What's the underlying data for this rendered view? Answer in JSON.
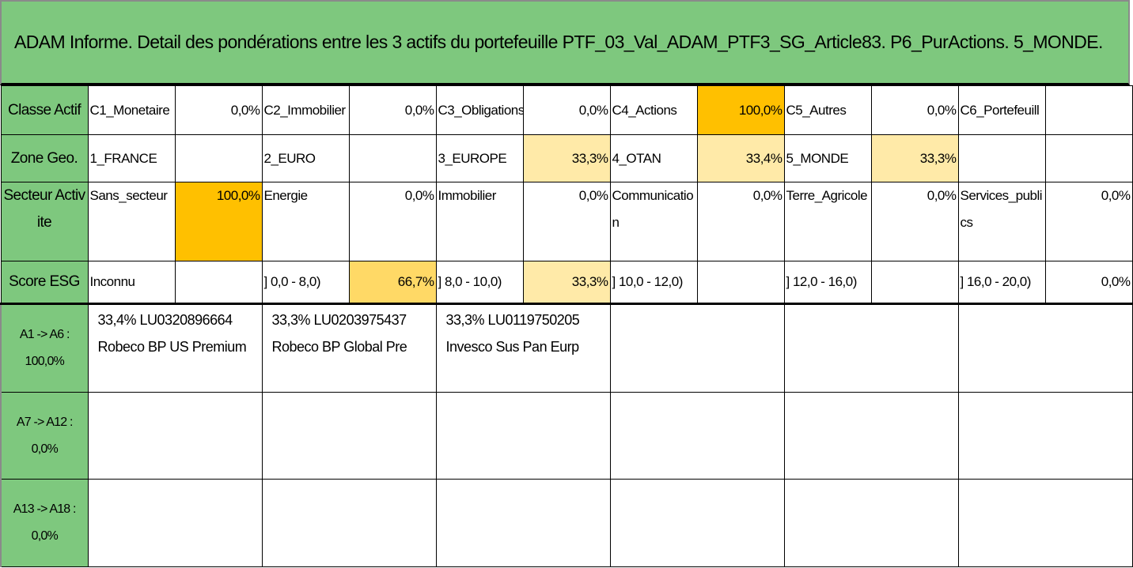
{
  "title": "ADAM Informe. Detail des pondérations entre les 3 actifs du portefeuille PTF_03_Val_ADAM_PTF3_SG_Article83. P6_PurActions. 5_MONDE.",
  "rows": {
    "classe": {
      "header": "Classe Actif",
      "cells": [
        {
          "label": "C1_Monetaire",
          "value": "0,0%"
        },
        {
          "label": "C2_Immobilier",
          "value": "0,0%"
        },
        {
          "label": "C3_Obligations",
          "value": "0,0%"
        },
        {
          "label": "C4_Actions",
          "value": "100,0%"
        },
        {
          "label": "C5_Autres",
          "value": "0,0%"
        },
        {
          "label": "C6_Portefeuill",
          "value": ""
        }
      ]
    },
    "zone": {
      "header": "Zone Geo.",
      "cells": [
        {
          "label": "1_FRANCE",
          "value": ""
        },
        {
          "label": "2_EURO",
          "value": ""
        },
        {
          "label": "3_EUROPE",
          "value": "33,3%"
        },
        {
          "label": "4_OTAN",
          "value": "33,4%"
        },
        {
          "label": "5_MONDE",
          "value": "33,3%"
        },
        {
          "label": "",
          "value": ""
        }
      ]
    },
    "secteur": {
      "header": "Secteur Activite",
      "cells": [
        {
          "label": "Sans_secteur",
          "value": "100,0%"
        },
        {
          "label": "Energie",
          "value": "0,0%"
        },
        {
          "label": "Immobilier",
          "value": "0,0%"
        },
        {
          "label": "Communication",
          "value": "0,0%"
        },
        {
          "label": "Terre_Agricole",
          "value": "0,0%"
        },
        {
          "label": "Services_publics",
          "value": "0,0%"
        }
      ]
    },
    "esg": {
      "header": "Score ESG",
      "cells": [
        {
          "label": "Inconnu",
          "value": ""
        },
        {
          "label": "] 0,0 - 8,0)",
          "value": "66,7%"
        },
        {
          "label": "] 8,0 - 10,0)",
          "value": "33,3%"
        },
        {
          "label": "] 10,0 - 12,0)",
          "value": ""
        },
        {
          "label": "] 12,0 - 16,0)",
          "value": ""
        },
        {
          "label": "] 16,0 - 20,0)",
          "value": "0,0%"
        }
      ]
    }
  },
  "assets": {
    "groups": [
      {
        "header": "A1 -> A6 : 100,0%"
      },
      {
        "header": "A7 -> A12 : 0,0%"
      },
      {
        "header": "A13 -> A18 : 0,0%"
      }
    ],
    "items": [
      {
        "line1": "33,4% LU0320896664",
        "line2": "Robeco BP US Premium"
      },
      {
        "line1": "33,3% LU0203975437",
        "line2": "Robeco BP Global Pre"
      },
      {
        "line1": "33,3% LU0119750205",
        "line2": "Invesco Sus Pan Eurp"
      }
    ]
  },
  "colors": {
    "header_green": "#7ec87e",
    "highlight_strong": "#ffc000",
    "highlight_mid": "#ffd966",
    "highlight_light": "#ffeaa8"
  }
}
